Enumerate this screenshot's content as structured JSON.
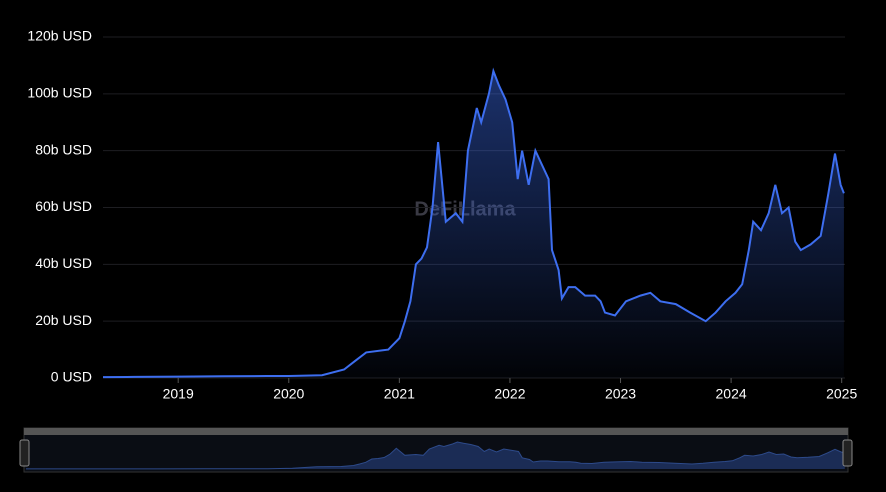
{
  "chart_data": {
    "type": "area",
    "watermark": "DeFiLlama",
    "color": "#3d6ef0",
    "x": [
      2018.32,
      2018.6,
      2019.0,
      2019.4,
      2019.8,
      2020.0,
      2020.3,
      2020.5,
      2020.6,
      2020.7,
      2020.9,
      2021.0,
      2021.05,
      2021.1,
      2021.15,
      2021.2,
      2021.25,
      2021.3,
      2021.35,
      2021.42,
      2021.51,
      2021.57,
      2021.62,
      2021.7,
      2021.74,
      2021.81,
      2021.85,
      2021.9,
      2021.96,
      2022.02,
      2022.07,
      2022.11,
      2022.17,
      2022.23,
      2022.29,
      2022.35,
      2022.38,
      2022.44,
      2022.47,
      2022.53,
      2022.59,
      2022.68,
      2022.77,
      2022.82,
      2022.86,
      2022.95,
      2023.05,
      2023.18,
      2023.27,
      2023.36,
      2023.5,
      2023.63,
      2023.77,
      2023.86,
      2023.95,
      2024.04,
      2024.1,
      2024.16,
      2024.2,
      2024.27,
      2024.34,
      2024.4,
      2024.46,
      2024.52,
      2024.58,
      2024.63,
      2024.72,
      2024.81,
      2024.88,
      2024.94,
      2024.99,
      2025.02
    ],
    "values": [
      0.3,
      0.4,
      0.5,
      0.6,
      0.7,
      0.7,
      1,
      3,
      6,
      9,
      10,
      14,
      20,
      27,
      40,
      42,
      46,
      60,
      83,
      55,
      58,
      55,
      80,
      95,
      90,
      100,
      108,
      103,
      98,
      90,
      70,
      80,
      68,
      80,
      75,
      70,
      45,
      38,
      28,
      32,
      32,
      29,
      29,
      27,
      23,
      22,
      27,
      29,
      30,
      27,
      26,
      23,
      20,
      23,
      27,
      30,
      33,
      45,
      55,
      52,
      58,
      68,
      58,
      60,
      48,
      45,
      47,
      50,
      65,
      79,
      68,
      65
    ],
    "xlim": [
      2018.32,
      2025.03
    ],
    "xticks": [
      2019,
      2020,
      2021,
      2022,
      2023,
      2024,
      2025
    ],
    "ylim": [
      0,
      120
    ],
    "yticks": [
      {
        "value": 0,
        "label": "0 USD"
      },
      {
        "value": 20,
        "label": "20b USD"
      },
      {
        "value": 40,
        "label": "40b USD"
      },
      {
        "value": 60,
        "label": "60b USD"
      },
      {
        "value": 80,
        "label": "80b USD"
      },
      {
        "value": 100,
        "label": "100b USD"
      },
      {
        "value": 120,
        "label": "120b USD"
      }
    ],
    "grid": true
  }
}
